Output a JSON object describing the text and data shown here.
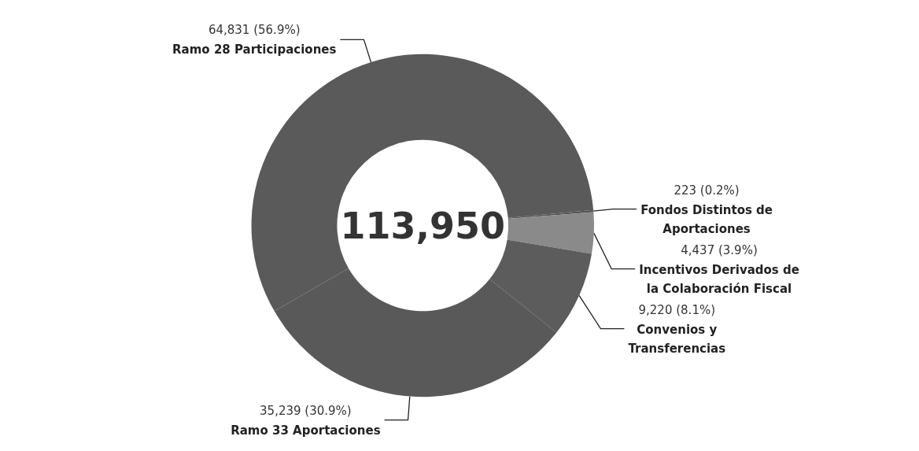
{
  "chart_data": {
    "type": "donut",
    "categories": [
      "Ramo 28 Participaciones",
      "Fondos Distintos de Aportaciones",
      "Incentivos Derivados de la Colaboración Fiscal",
      "Convenios y Transferencias",
      "Ramo 33 Aportaciones"
    ],
    "values": [
      64831,
      223,
      4437,
      9220,
      35239
    ],
    "value_labels": [
      "64,831 (56.9%)",
      "223 (0.2%)",
      "4,437 (3.9%)",
      "9,220 (8.1%)",
      "35,239 (30.9%)"
    ],
    "colors": [
      "#5a5a5a",
      "#555555",
      "#8a8a8a",
      "#5c5c5c",
      "#595959"
    ],
    "annotations": [
      "113,950"
    ],
    "legend": false
  }
}
